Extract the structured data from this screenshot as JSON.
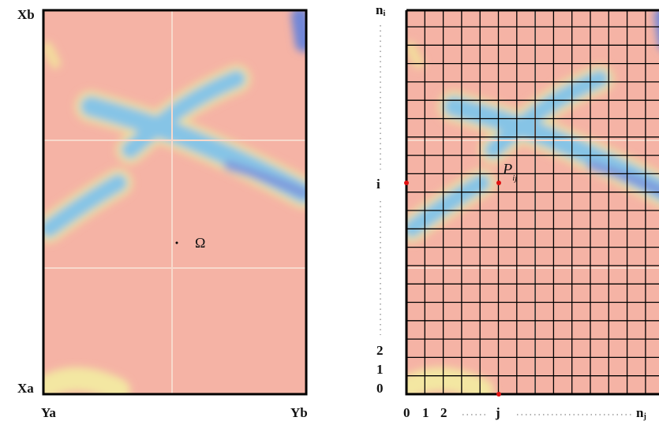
{
  "left": {
    "top_label": "Xb",
    "bottom_label": "Xa",
    "x_start_label": "Ya",
    "x_end_label": "Yb",
    "region_label": "Ω"
  },
  "right": {
    "row_top": {
      "base": "n",
      "sub": "i"
    },
    "row_i": "i",
    "row_labels": [
      "2",
      "1",
      "0"
    ],
    "col_labels": [
      "0",
      "1",
      "2",
      "j"
    ],
    "col_end": {
      "base": "n",
      "sub": "j"
    },
    "point": {
      "base": "P",
      "sub": "ij"
    }
  }
}
